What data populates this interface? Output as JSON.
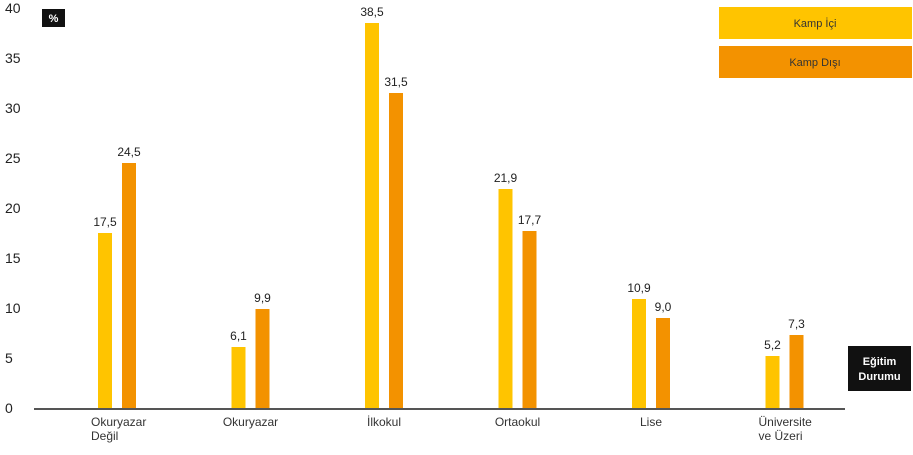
{
  "chart_data": {
    "type": "bar",
    "unit_badge": "%",
    "categories": [
      [
        "Okuryazar",
        "Değil"
      ],
      [
        "Okuryazar"
      ],
      [
        "İlkokul"
      ],
      [
        "Ortaokul"
      ],
      [
        "Lise"
      ],
      [
        "Üniversite",
        "ve Üzeri"
      ]
    ],
    "series": [
      {
        "name": "Kamp İçi",
        "color": "#FFC400",
        "values": [
          17.5,
          6.1,
          38.5,
          21.9,
          10.9,
          5.2
        ],
        "labels": [
          "17,5",
          "6,1",
          "38,5",
          "21,9",
          "10,9",
          "5,2"
        ]
      },
      {
        "name": "Kamp Dışı",
        "color": "#F39200",
        "values": [
          24.5,
          9.9,
          31.5,
          17.7,
          9.0,
          7.3
        ],
        "labels": [
          "24,5",
          "9,9",
          "31,5",
          "17,7",
          "9,0",
          "7,3"
        ]
      }
    ],
    "ylim": [
      0,
      40
    ],
    "yticks": [
      0,
      5,
      10,
      15,
      20,
      25,
      30,
      35,
      40
    ],
    "xlabel": [
      "Eğitim",
      "Durumu"
    ],
    "legend_position": "top-right",
    "grid": false
  }
}
